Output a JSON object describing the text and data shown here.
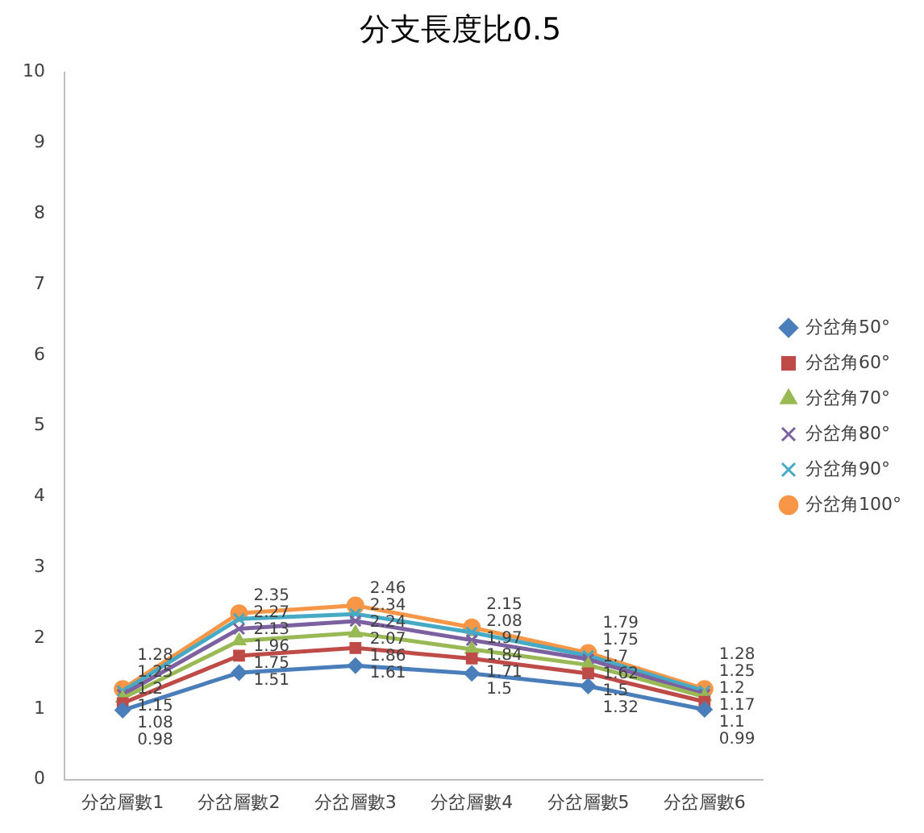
{
  "chart_data": {
    "type": "line",
    "title": "分支長度比0.5",
    "categories": [
      "分岔層數1",
      "分岔層數2",
      "分岔層數3",
      "分岔層數4",
      "分岔層數5",
      "分岔層數6"
    ],
    "series": [
      {
        "name": "分岔角50°",
        "color": "#4a7ebb",
        "marker": "diamond",
        "values": [
          0.98,
          1.51,
          1.61,
          1.5,
          1.32,
          0.99
        ]
      },
      {
        "name": "分岔角60°",
        "color": "#be4b48",
        "marker": "square",
        "values": [
          1.08,
          1.75,
          1.86,
          1.71,
          1.5,
          1.1
        ]
      },
      {
        "name": "分岔角70°",
        "color": "#98b954",
        "marker": "triangle",
        "values": [
          1.15,
          1.96,
          2.07,
          1.84,
          1.62,
          1.17
        ]
      },
      {
        "name": "分岔角80°",
        "color": "#7d60a0",
        "marker": "cross",
        "values": [
          1.2,
          2.13,
          2.24,
          1.97,
          1.7,
          1.2
        ]
      },
      {
        "name": "分岔角90°",
        "color": "#46aac5",
        "marker": "cross",
        "values": [
          1.25,
          2.27,
          2.34,
          2.08,
          1.75,
          1.25
        ]
      },
      {
        "name": "分岔角100°",
        "color": "#f79646",
        "marker": "circle",
        "values": [
          1.28,
          2.35,
          2.46,
          2.15,
          1.79,
          1.28
        ]
      }
    ],
    "ylim": [
      0,
      10
    ],
    "yticks": [
      0,
      1,
      2,
      3,
      4,
      5,
      6,
      7,
      8,
      9,
      10
    ],
    "grid": false,
    "legend": "right",
    "data_labels": true,
    "line_style": "solid"
  }
}
